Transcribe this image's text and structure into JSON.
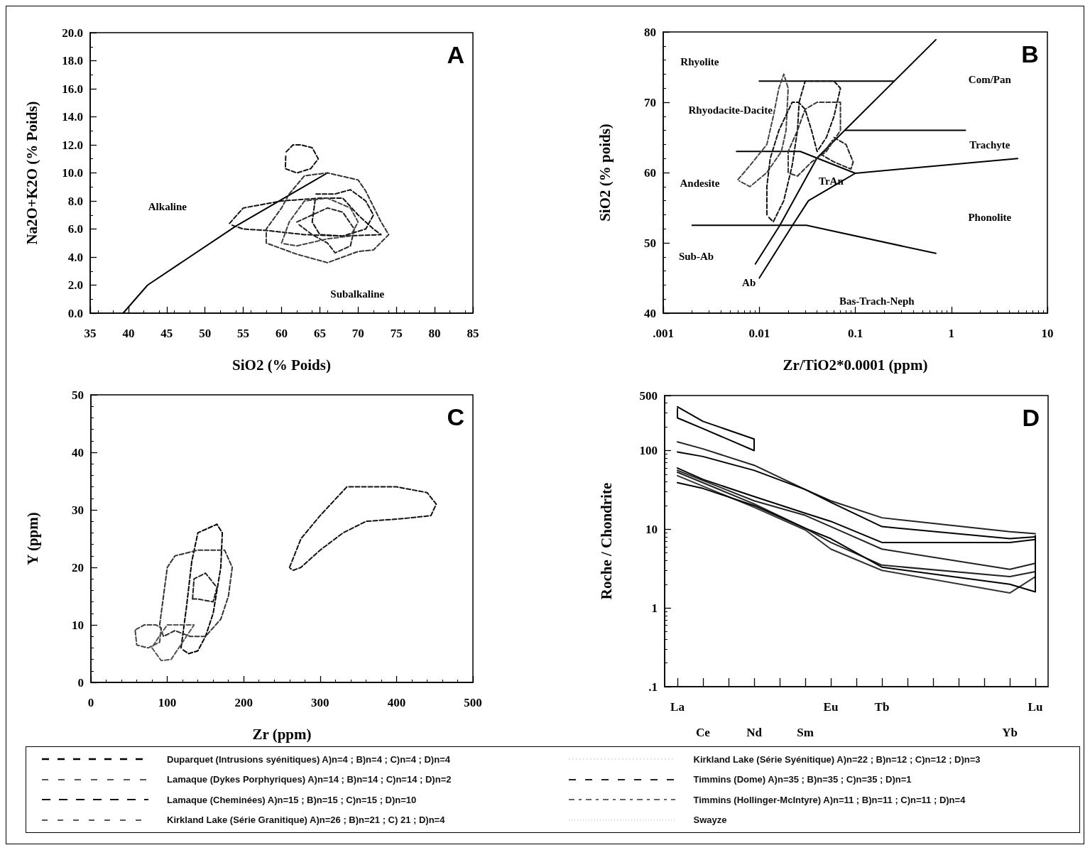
{
  "chart_data": [
    {
      "type": "line",
      "xlabel": "SiO2 (% Poids)",
      "ylabel": "Na2O+K2O (% Poids)",
      "xlim": [
        35,
        85
      ],
      "ylim": [
        0,
        20
      ],
      "xticks": [
        35,
        40,
        45,
        50,
        55,
        60,
        65,
        70,
        75,
        80,
        85
      ],
      "yticks": [
        {
          "value": 0,
          "label": "0.0"
        },
        {
          "value": 2,
          "label": "2.0"
        },
        {
          "value": 4,
          "label": "4.0"
        },
        {
          "value": 6,
          "label": "6.0"
        },
        {
          "value": 8,
          "label": "8.0"
        },
        {
          "value": 10,
          "label": "10.0"
        },
        {
          "value": 12,
          "label": "12.0"
        },
        {
          "value": 14,
          "label": "14.0"
        },
        {
          "value": 16,
          "label": "16.0"
        },
        {
          "value": 18,
          "label": "18.0"
        },
        {
          "value": 20,
          "label": "20.0"
        }
      ],
      "annotations": [
        "A",
        "Alkaline",
        "Subalkaline"
      ],
      "series": [
        {
          "color": "#000000",
          "line_style": "solid",
          "x": [
            39.3,
            42.5,
            54,
            66
          ],
          "values": [
            0,
            2,
            6.2,
            10
          ]
        },
        {
          "color": "#111111",
          "line_style": "dashed",
          "x": [
            60.6,
            61.5,
            62.5,
            64,
            64.8,
            63.8,
            62,
            60.5,
            60.55
          ],
          "values": [
            11.5,
            12,
            12,
            11.8,
            11,
            10.3,
            10,
            10.3,
            11.3
          ]
        },
        {
          "color": "#111111",
          "line_style": "dashed",
          "x": [
            53.2,
            55,
            60,
            65,
            68,
            70,
            72,
            73,
            68,
            63,
            58,
            55,
            53.4
          ],
          "values": [
            6.4,
            7.5,
            8,
            8.2,
            8.2,
            7,
            6,
            5.6,
            5.5,
            5.6,
            5.9,
            6,
            6.3
          ]
        },
        {
          "color": "#333333",
          "line_style": "dashed",
          "x": [
            61,
            63,
            66,
            70,
            71,
            73,
            74,
            72,
            70,
            66,
            62,
            58,
            58,
            60,
            60.8
          ],
          "values": [
            8.5,
            9.8,
            10,
            9.5,
            8.7,
            6.5,
            5.6,
            4.5,
            4.4,
            3.6,
            4.2,
            5,
            6,
            7.5,
            8.3
          ]
        },
        {
          "color": "#111111",
          "line_style": "dashed",
          "x": [
            64.5,
            67,
            69,
            71,
            72,
            71,
            68,
            65,
            64,
            64.4
          ],
          "values": [
            8.5,
            8.5,
            8.8,
            8,
            7,
            6,
            5.5,
            5.6,
            6.5,
            8.1
          ]
        },
        {
          "color": "#222222",
          "line_style": "dashed",
          "x": [
            62,
            64,
            66,
            68,
            69.5,
            69,
            67,
            66,
            64,
            62.3
          ],
          "values": [
            6.5,
            7,
            7.5,
            7.2,
            6,
            4.8,
            4.3,
            5,
            5.6,
            6.3
          ]
        },
        {
          "color": "#444444",
          "line_style": "dashed",
          "x": [
            60,
            61,
            63,
            66,
            69,
            70,
            69,
            66,
            62,
            60.3
          ],
          "values": [
            5,
            6.5,
            8,
            8.2,
            7.5,
            6.5,
            5.5,
            5.3,
            4.8,
            4.95
          ]
        }
      ]
    },
    {
      "type": "line",
      "xlabel": "Zr/TiO2*0.0001 (ppm)",
      "ylabel": "SiO2 (% poids)",
      "log": "x",
      "xlim": [
        0.001,
        10
      ],
      "ylim": [
        40,
        80
      ],
      "xticks": [
        {
          "value": 0.001,
          "label": ".001"
        },
        {
          "value": 0.01,
          "label": "0.01"
        },
        {
          "value": 0.1,
          "label": "0.1"
        },
        1,
        10
      ],
      "yticks": [
        40,
        50,
        60,
        70,
        80
      ],
      "annotations": [
        "B",
        "Rhyolite",
        "Com/Pan",
        "Rhyodacite-Dacite",
        "Trachyte",
        "Andesite",
        "TrAn",
        "Phonolite",
        "Sub-Ab",
        "Ab",
        "Bas-Trach-Neph"
      ],
      "series": [
        {
          "color": "#000000",
          "line_style": "solid",
          "x": [
            0.01,
            0.25
          ],
          "values": [
            73,
            73
          ]
        },
        {
          "color": "#000000",
          "line_style": "solid",
          "x": [
            0.0091,
            0.0164,
            0.04,
            0.69
          ],
          "values": [
            47,
            52.5,
            62.1,
            78.9
          ]
        },
        {
          "color": "#000000",
          "line_style": "solid",
          "x": [
            0.01,
            0.0222,
            0.0325,
            0.1,
            4.9
          ],
          "values": [
            45,
            52.5,
            56,
            59.9,
            62
          ]
        },
        {
          "color": "#000000",
          "line_style": "solid",
          "x": [
            0.0058,
            0.0267,
            0.1
          ],
          "values": [
            63,
            63,
            59.9
          ]
        },
        {
          "color": "#000000",
          "line_style": "solid",
          "x": [
            0.079,
            1.4
          ],
          "values": [
            66,
            66
          ]
        },
        {
          "color": "#000000",
          "line_style": "solid",
          "x": [
            0.002,
            0.031,
            0.69
          ],
          "values": [
            52.5,
            52.5,
            48.5
          ]
        },
        {
          "color": "#444444",
          "line_style": "dashed",
          "x": [
            0.006,
            0.008,
            0.012,
            0.014,
            0.016,
            0.018,
            0.02,
            0.019,
            0.017,
            0.012,
            0.008,
            0.0062
          ],
          "values": [
            59,
            61,
            64,
            68,
            72,
            74,
            72,
            66,
            63,
            60,
            58,
            58.8
          ]
        },
        {
          "color": "#111111",
          "line_style": "dashed",
          "x": [
            0.012,
            0.012,
            0.013,
            0.016,
            0.022,
            0.026,
            0.025,
            0.022,
            0.018,
            0.014,
            0.0122
          ],
          "values": [
            54,
            58,
            62,
            66,
            70,
            70,
            66,
            61,
            56,
            53,
            53.8
          ]
        },
        {
          "color": "#111111",
          "line_style": "dashed",
          "x": [
            0.026,
            0.03,
            0.045,
            0.06,
            0.07,
            0.06,
            0.05,
            0.04,
            0.035,
            0.03,
            0.0265
          ],
          "values": [
            70,
            73,
            73,
            73,
            72,
            68,
            65,
            63,
            66,
            69,
            69.8
          ]
        },
        {
          "color": "#222222",
          "line_style": "dashed",
          "x": [
            0.06,
            0.08,
            0.095,
            0.09,
            0.06,
            0.045,
            0.058
          ],
          "values": [
            65,
            64,
            61.5,
            60.5,
            61.5,
            62.5,
            64.6
          ]
        },
        {
          "color": "#333333",
          "line_style": "dashed",
          "x": [
            0.02,
            0.02,
            0.025,
            0.03,
            0.04,
            0.07,
            0.07,
            0.05,
            0.035,
            0.025,
            0.0205
          ],
          "values": [
            60,
            63,
            66,
            69,
            70,
            70,
            66,
            63,
            61.5,
            59.5,
            59.9
          ]
        }
      ]
    },
    {
      "type": "line",
      "xlabel": "Zr (ppm)",
      "ylabel": "Y (ppm)",
      "xlim": [
        0,
        500
      ],
      "ylim": [
        0,
        50
      ],
      "xticks": [
        0,
        100,
        200,
        300,
        400,
        500
      ],
      "yticks": [
        0,
        10,
        20,
        30,
        40,
        50
      ],
      "annotations": [
        "C"
      ],
      "series": [
        {
          "color": "#111111",
          "line_style": "dashed",
          "x": [
            260,
            275,
            300,
            335,
            360,
            400,
            440,
            452,
            445,
            410,
            360,
            330,
            300,
            275,
            265,
            261
          ],
          "values": [
            20,
            25,
            29,
            34,
            34,
            34,
            33,
            31,
            29,
            28.5,
            28,
            26,
            23,
            20,
            19.5,
            19.8
          ]
        },
        {
          "color": "#000000",
          "line_style": "dashed",
          "x": [
            118,
            125,
            132,
            140,
            165,
            172,
            170,
            160,
            150,
            140,
            128,
            119
          ],
          "values": [
            6,
            13,
            21,
            26,
            27.5,
            26,
            20,
            12,
            8,
            5.5,
            5,
            5.8
          ]
        },
        {
          "color": "#333333",
          "line_style": "dashed",
          "x": [
            90,
            95,
            100,
            110,
            140,
            175,
            185,
            180,
            170,
            150,
            130,
            110,
            95,
            90.5
          ],
          "values": [
            10,
            15,
            20,
            22,
            23,
            23,
            20,
            15,
            11,
            8,
            8,
            9,
            8,
            9.7
          ]
        },
        {
          "color": "#222222",
          "line_style": "dashed",
          "x": [
            133,
            135,
            150,
            165,
            160,
            140,
            134
          ],
          "values": [
            14.5,
            18,
            19,
            16.5,
            14,
            14.5,
            14.5
          ]
        },
        {
          "color": "#444444",
          "line_style": "dashed",
          "x": [
            58,
            60,
            75,
            90,
            92,
            85,
            70,
            59
          ],
          "values": [
            9,
            6.5,
            6,
            7,
            9.5,
            10,
            10,
            9.2
          ]
        },
        {
          "color": "#555555",
          "line_style": "dashed",
          "x": [
            80,
            92,
            105,
            115,
            125,
            135,
            120,
            100,
            92,
            81
          ],
          "values": [
            6,
            3.8,
            4,
            6,
            8,
            10,
            10,
            10,
            8.5,
            6.3
          ]
        }
      ]
    },
    {
      "type": "line",
      "ylabel": "Roche / Chondrite",
      "log": "y",
      "ylim": [
        0.1,
        500
      ],
      "categories": [
        "La",
        "Ce",
        null,
        "Nd",
        null,
        "Sm",
        "Eu",
        null,
        "Tb",
        null,
        null,
        null,
        null,
        "Yb",
        "Lu"
      ],
      "yticks": [
        {
          "value": 0.1,
          "label": ".1"
        },
        1,
        10,
        100,
        500
      ],
      "annotations": [
        "D"
      ],
      "series": [
        {
          "color": "#000000",
          "line_style": "solid",
          "x": [
            "La",
            "Ce",
            "Nd",
            "Nd",
            "Ce",
            "La",
            "La"
          ],
          "values": [
            360,
            235,
            140,
            100,
            190,
            260,
            340
          ]
        },
        {
          "color": "#222222",
          "line_style": "solid",
          "x": [
            "La",
            "Ce",
            "Nd",
            "Sm",
            "Eu",
            "Tb",
            "Yb",
            "Lu"
          ],
          "values": [
            129,
            105,
            65,
            32,
            23,
            14,
            9.3,
            8.8
          ]
        },
        {
          "color": "#000000",
          "line_style": "solid",
          "x": [
            "La",
            "Ce",
            "Nd",
            "Sm",
            "Eu",
            "Tb",
            "Yb",
            "Lu"
          ],
          "values": [
            96,
            84,
            56,
            32,
            22,
            10.8,
            7.6,
            8
          ]
        },
        {
          "color": "#000000",
          "line_style": "solid",
          "x": [
            "La",
            "Ce",
            "Nd",
            "Sm",
            "Eu",
            "Tb",
            "Yb",
            "Lu"
          ],
          "values": [
            60,
            43,
            26,
            16,
            12.6,
            6.8,
            6.8,
            7.4
          ]
        },
        {
          "color": "#222222",
          "line_style": "solid",
          "x": [
            "La",
            "Nd",
            "Sm",
            "Eu",
            "Tb",
            "Yb",
            "Lu"
          ],
          "values": [
            56,
            23,
            15,
            10.8,
            5.6,
            3.1,
            3.7
          ]
        },
        {
          "color": "#222222",
          "line_style": "solid",
          "x": [
            "La",
            "Nd",
            "Sm",
            "Eu",
            "Tb",
            "Yb",
            "Lu"
          ],
          "values": [
            53,
            21,
            10.3,
            6.8,
            3.5,
            2.5,
            2.9
          ]
        },
        {
          "color": "#333333",
          "line_style": "solid",
          "x": [
            "La",
            "Nd",
            "Sm",
            "Eu",
            "Tb",
            "Yb",
            "Lu"
          ],
          "values": [
            48,
            19,
            9.8,
            5.6,
            3,
            1.55,
            2.5
          ]
        },
        {
          "color": "#000000",
          "line_style": "solid",
          "x": [
            "La",
            "Ce",
            "Nd",
            "Sm",
            "Eu",
            "Tb",
            "Yb",
            "Lu",
            "Lu"
          ],
          "values": [
            39,
            33,
            20,
            10.3,
            7.6,
            3.3,
            2,
            1.6,
            8.3
          ]
        }
      ]
    },
    {
      "type": "other",
      "annotations": [
        "Duparquet (Intrusions syénitiques) A)n=4 ; B)n=4 ; C)n=4 ; D)n=4",
        "Lamaque (Dykes Porphyriques) A)n=14 ; B)n=14 ; C)n=14 ; D)n=2",
        "Lamaque (Cheminées) A)n=15 ; B)n=15 ; C)n=15 ; D)n=10",
        "Kirkland Lake (Série Granitique) A)n=26 ; B)n=21 ; C) 21 ; D)n=4",
        "Kirkland Lake (Série Syénitique) A)n=22 ; B)n=12 ; C)n=12 ; D)n=3",
        "Timmins (Dome) A)n=35 ; B)n=35 ; C)n=35 ; D)n=1",
        "Timmins (Hollinger-McIntyre) A)n=11 ; B)n=11 ; C)n=11 ; D)n=4",
        "Swayze"
      ]
    }
  ]
}
